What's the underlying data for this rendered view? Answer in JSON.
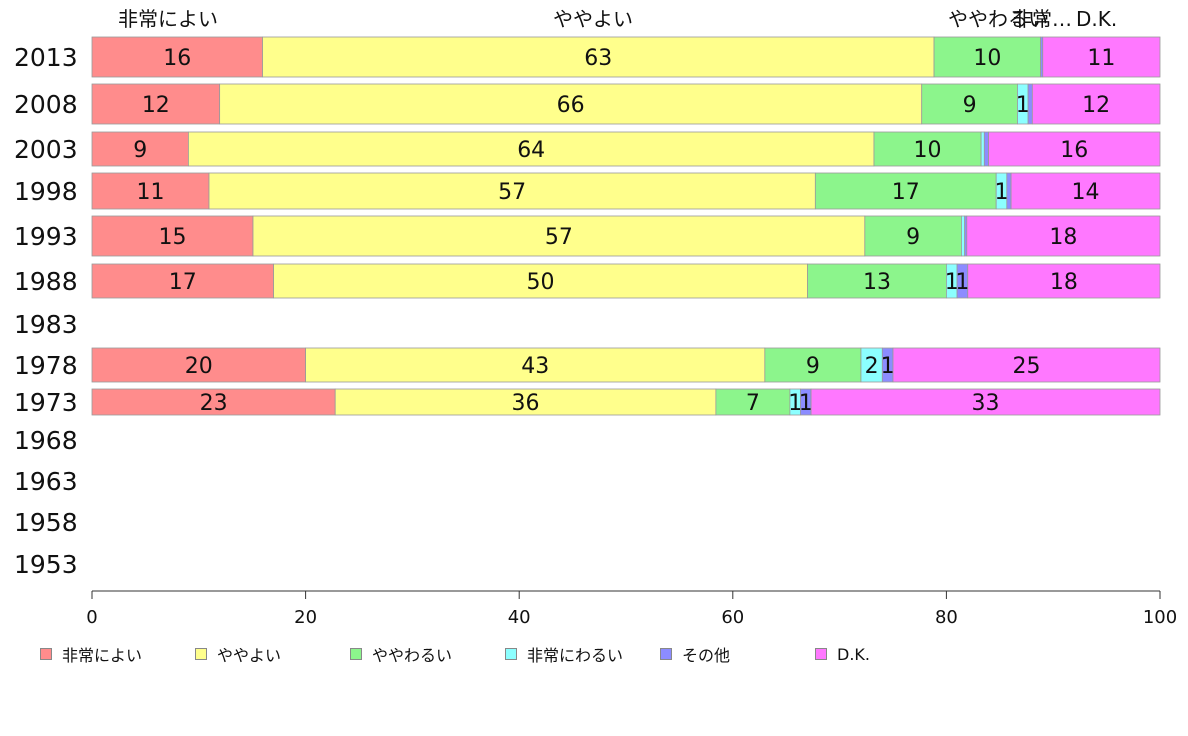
{
  "chart_data": {
    "type": "bar",
    "orientation": "horizontal",
    "stacked": true,
    "categories": [
      "2013",
      "2008",
      "2003",
      "1998",
      "1993",
      "1988",
      "1983",
      "1978",
      "1973",
      "1968",
      "1963",
      "1958",
      "1953"
    ],
    "series": [
      {
        "name": "非常によい",
        "color": "#ff8c8c",
        "values": [
          16,
          12,
          9,
          11,
          15,
          17,
          null,
          20,
          23,
          null,
          null,
          null,
          null
        ]
      },
      {
        "name": "ややよい",
        "color": "#ffff8c",
        "values": [
          63,
          66,
          64,
          57,
          57,
          50,
          null,
          43,
          36,
          null,
          null,
          null,
          null
        ]
      },
      {
        "name": "ややわるい",
        "color": "#8cf58c",
        "values": [
          10,
          9,
          10,
          17,
          9,
          13,
          null,
          9,
          7,
          null,
          null,
          null,
          null
        ]
      },
      {
        "name": "非常にわるい",
        "color": "#8cffff",
        "values": [
          0,
          1,
          0.3,
          1,
          0.3,
          1,
          null,
          2,
          1,
          null,
          null,
          null,
          null
        ]
      },
      {
        "name": "その他",
        "color": "#8c8cff",
        "values": [
          0.2,
          0.4,
          0.4,
          0.4,
          0.2,
          1,
          null,
          1,
          1,
          null,
          null,
          null,
          null
        ]
      },
      {
        "name": "D.K.",
        "color": "#ff78ff",
        "values": [
          11,
          12,
          16,
          14,
          18,
          18,
          null,
          25,
          33,
          null,
          null,
          null,
          null
        ]
      }
    ],
    "top_labels": [
      "非常によい",
      "ややよい",
      "ややわるい",
      "非常…",
      "D.K."
    ],
    "xlim": [
      0,
      100
    ],
    "xticks": [
      0,
      20,
      40,
      60,
      80,
      100
    ],
    "legend_position": "bottom",
    "grid": false
  }
}
